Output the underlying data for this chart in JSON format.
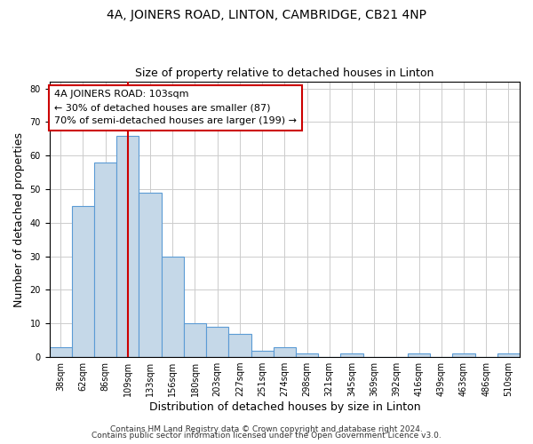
{
  "title": "4A, JOINERS ROAD, LINTON, CAMBRIDGE, CB21 4NP",
  "subtitle": "Size of property relative to detached houses in Linton",
  "xlabel": "Distribution of detached houses by size in Linton",
  "ylabel": "Number of detached properties",
  "footer_lines": [
    "Contains HM Land Registry data © Crown copyright and database right 2024.",
    "Contains public sector information licensed under the Open Government Licence v3.0."
  ],
  "bin_labels": [
    "38sqm",
    "62sqm",
    "86sqm",
    "109sqm",
    "133sqm",
    "156sqm",
    "180sqm",
    "203sqm",
    "227sqm",
    "251sqm",
    "274sqm",
    "298sqm",
    "321sqm",
    "345sqm",
    "369sqm",
    "392sqm",
    "416sqm",
    "439sqm",
    "463sqm",
    "486sqm",
    "510sqm"
  ],
  "bar_heights": [
    3,
    45,
    58,
    66,
    49,
    30,
    10,
    9,
    7,
    2,
    3,
    1,
    0,
    1,
    0,
    0,
    1,
    0,
    1,
    0,
    1
  ],
  "bar_color": "#c5d8e8",
  "bar_edge_color": "#5b9bd5",
  "vline_color": "#cc0000",
  "annotation_box_text": "4A JOINERS ROAD: 103sqm\n← 30% of detached houses are smaller (87)\n70% of semi-detached houses are larger (199) →",
  "annotation_box_color": "#cc0000",
  "annotation_box_bg": "#ffffff",
  "ylim": [
    0,
    82
  ],
  "yticks": [
    0,
    10,
    20,
    30,
    40,
    50,
    60,
    70,
    80
  ],
  "grid_color": "#cccccc",
  "background_color": "#ffffff",
  "title_fontsize": 10,
  "subtitle_fontsize": 9,
  "axis_label_fontsize": 9,
  "tick_fontsize": 7,
  "annotation_fontsize": 8,
  "footer_fontsize": 6.5
}
